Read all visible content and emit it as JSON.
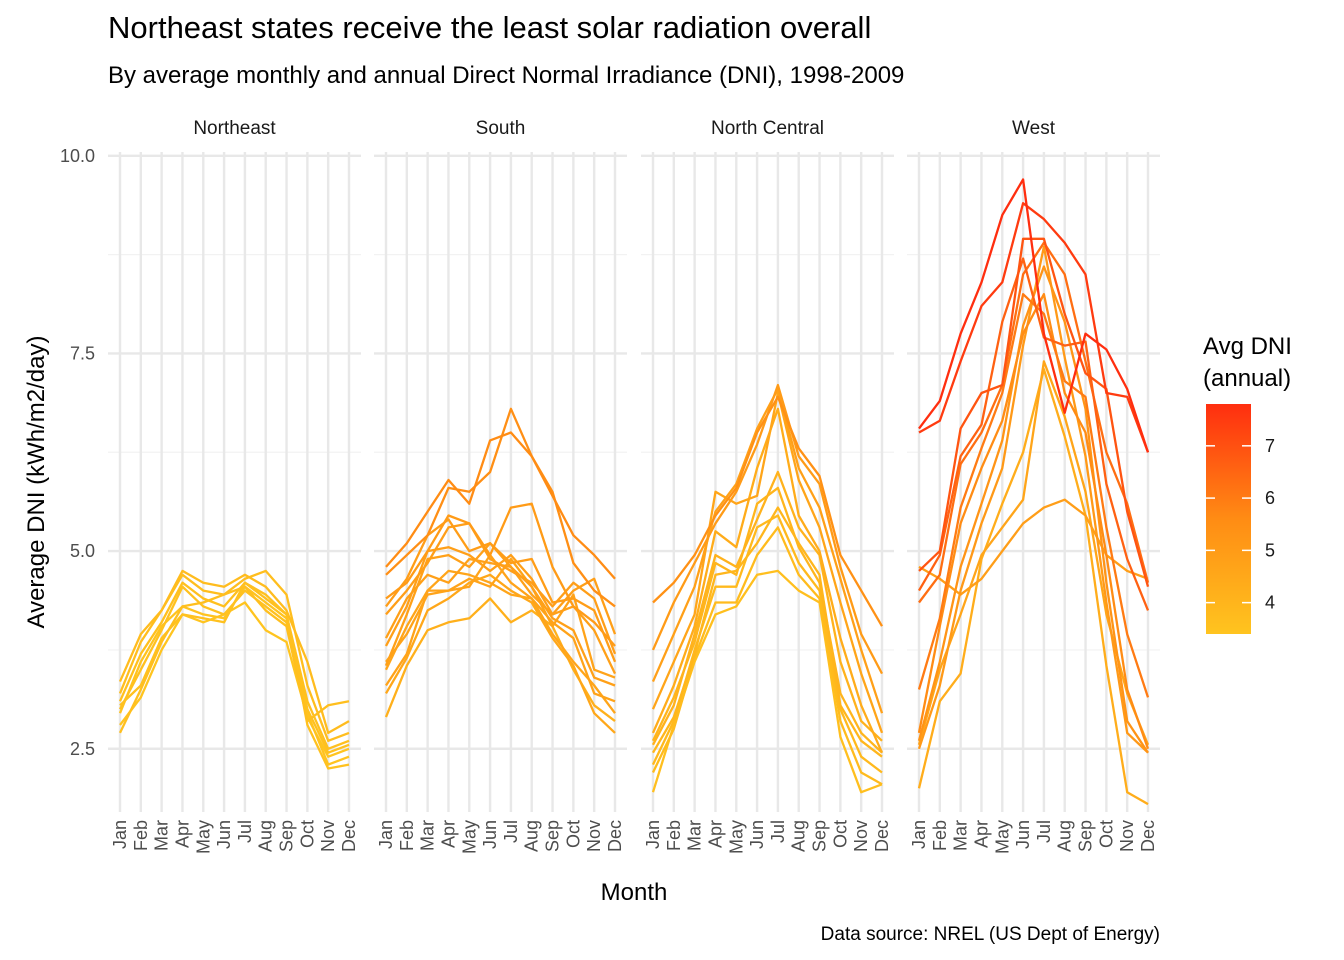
{
  "chart_data": {
    "type": "line",
    "title": "Northeast states receive the least solar radiation overall",
    "subtitle": "By average monthly and annual Direct Normal Irradiance (DNI), 1998-2009",
    "xlabel": "Month",
    "ylabel": "Average DNI (kWh/m2/day)",
    "caption": "Data source: NREL (US Dept of Energy)",
    "months": [
      "Jan",
      "Feb",
      "Mar",
      "Apr",
      "May",
      "Jun",
      "Jul",
      "Aug",
      "Sep",
      "Oct",
      "Nov",
      "Dec"
    ],
    "ylim": [
      1.7,
      10.2
    ],
    "yticks": [
      2.5,
      5.0,
      7.5,
      10.0
    ],
    "ytick_labels": [
      "2.5",
      "5.0",
      "7.5",
      "10.0"
    ],
    "grid": true,
    "legend": {
      "title_lines": [
        "Avg DNI",
        "(annual)"
      ],
      "position": "right",
      "range": [
        3.4,
        7.8
      ],
      "ticks": [
        4,
        5,
        6,
        7
      ],
      "tick_labels": [
        "4",
        "5",
        "6",
        "7"
      ],
      "color_low": "#ffc41f",
      "color_mid": "#ff8c14",
      "color_high": "#ff2e0f"
    },
    "panels": [
      {
        "name": "Northeast",
        "series": [
          {
            "annual": 3.7,
            "values": [
              3.35,
              3.95,
              4.25,
              4.75,
              4.6,
              4.55,
              4.7,
              4.55,
              4.25,
              3.6,
              2.7,
              2.85
            ]
          },
          {
            "annual": 3.65,
            "values": [
              3.2,
              3.85,
              4.25,
              4.7,
              4.5,
              4.45,
              4.65,
              4.75,
              4.45,
              3.3,
              2.6,
              2.7
            ]
          },
          {
            "annual": 3.55,
            "values": [
              3.1,
              3.7,
              4.1,
              4.6,
              4.4,
              4.3,
              4.6,
              4.4,
              4.2,
              3.1,
              2.5,
              2.6
            ]
          },
          {
            "annual": 3.5,
            "values": [
              3.0,
              3.5,
              4.0,
              4.55,
              4.3,
              4.2,
              4.5,
              4.3,
              4.1,
              3.0,
              2.45,
              2.55
            ]
          },
          {
            "annual": 3.45,
            "values": [
              2.95,
              3.6,
              4.05,
              4.3,
              4.2,
              4.15,
              4.55,
              4.35,
              4.15,
              2.95,
              2.3,
              2.4
            ]
          },
          {
            "annual": 3.5,
            "values": [
              3.05,
              3.3,
              3.9,
              4.2,
              4.15,
              4.1,
              4.6,
              4.45,
              4.2,
              2.8,
              2.25,
              2.3
            ]
          },
          {
            "annual": 3.6,
            "values": [
              2.7,
              3.25,
              3.85,
              4.3,
              4.35,
              4.45,
              4.55,
              4.25,
              4.05,
              2.85,
              3.05,
              3.1
            ]
          },
          {
            "annual": 3.4,
            "values": [
              2.8,
              3.15,
              3.75,
              4.2,
              4.1,
              4.2,
              4.35,
              4.0,
              3.85,
              2.9,
              2.4,
              2.5
            ]
          }
        ]
      },
      {
        "name": "South",
        "series": [
          {
            "annual": 5.6,
            "values": [
              4.8,
              5.1,
              5.5,
              5.9,
              5.6,
              6.4,
              6.5,
              6.2,
              5.7,
              5.2,
              4.95,
              4.65
            ]
          },
          {
            "annual": 5.5,
            "values": [
              4.7,
              4.95,
              5.2,
              5.8,
              5.75,
              6.0,
              6.8,
              6.2,
              5.75,
              4.85,
              4.5,
              4.3
            ]
          },
          {
            "annual": 5.0,
            "values": [
              4.4,
              4.6,
              5.0,
              5.45,
              5.35,
              4.95,
              5.55,
              5.6,
              4.8,
              4.3,
              4.1,
              3.8
            ]
          },
          {
            "annual": 4.95,
            "values": [
              4.3,
              4.65,
              5.2,
              5.4,
              5.0,
              5.1,
              4.85,
              4.9,
              4.35,
              4.4,
              4.25,
              3.6
            ]
          },
          {
            "annual": 4.9,
            "values": [
              4.2,
              4.5,
              4.85,
              5.3,
              5.35,
              4.9,
              4.75,
              4.6,
              4.3,
              4.6,
              4.4,
              3.7
            ]
          },
          {
            "annual": 4.85,
            "values": [
              3.8,
              4.3,
              5.0,
              5.05,
              4.95,
              4.75,
              4.95,
              4.65,
              4.2,
              4.5,
              4.65,
              3.95
            ]
          },
          {
            "annual": 4.8,
            "values": [
              3.55,
              4.2,
              4.9,
              4.95,
              4.8,
              5.1,
              4.8,
              4.55,
              4.15,
              4.0,
              3.4,
              3.3
            ]
          },
          {
            "annual": 4.8,
            "values": [
              3.9,
              4.4,
              4.7,
              4.6,
              4.9,
              4.85,
              4.8,
              4.45,
              4.2,
              4.3,
              4.0,
              3.45
            ]
          },
          {
            "annual": 4.7,
            "values": [
              3.6,
              3.95,
              4.45,
              4.5,
              4.55,
              4.95,
              4.6,
              4.4,
              4.1,
              3.9,
              3.2,
              3.1
            ]
          },
          {
            "annual": 4.7,
            "values": [
              3.3,
              3.7,
              4.5,
              4.5,
              4.65,
              4.55,
              4.9,
              4.55,
              4.05,
              4.45,
              3.5,
              3.4
            ]
          },
          {
            "annual": 4.6,
            "values": [
              3.5,
              4.05,
              4.5,
              4.75,
              4.7,
              4.6,
              4.45,
              4.4,
              3.95,
              3.6,
              3.3,
              2.95
            ]
          },
          {
            "annual": 4.55,
            "values": [
              3.2,
              3.65,
              4.25,
              4.4,
              4.6,
              4.7,
              4.5,
              4.35,
              3.9,
              3.55,
              2.95,
              2.7
            ]
          },
          {
            "annual": 4.2,
            "values": [
              2.9,
              3.55,
              4.0,
              4.1,
              4.15,
              4.4,
              4.1,
              4.25,
              4.05,
              3.5,
              3.05,
              2.85
            ]
          }
        ]
      },
      {
        "name": "North Central",
        "series": [
          {
            "annual": 5.4,
            "values": [
              4.35,
              4.6,
              4.95,
              5.45,
              5.8,
              6.5,
              6.95,
              6.3,
              5.95,
              4.95,
              4.5,
              4.05
            ]
          },
          {
            "annual": 5.0,
            "values": [
              3.75,
              4.35,
              4.85,
              5.35,
              5.75,
              6.35,
              7.1,
              6.2,
              5.85,
              4.8,
              3.95,
              3.45
            ]
          },
          {
            "annual": 4.8,
            "values": [
              3.35,
              3.95,
              4.55,
              5.5,
              5.85,
              6.55,
              7.05,
              6.05,
              5.55,
              4.65,
              3.75,
              2.95
            ]
          },
          {
            "annual": 4.6,
            "values": [
              3.0,
              3.6,
              4.2,
              5.75,
              5.6,
              5.7,
              7.0,
              5.9,
              5.3,
              4.35,
              3.45,
              2.7
            ]
          },
          {
            "annual": 4.35,
            "values": [
              2.7,
              3.3,
              4.05,
              5.25,
              5.05,
              6.05,
              6.8,
              5.45,
              5.0,
              3.9,
              3.05,
              2.45
            ]
          },
          {
            "annual": 4.1,
            "values": [
              2.55,
              3.05,
              3.95,
              4.95,
              4.8,
              5.4,
              6.0,
              5.3,
              4.95,
              3.6,
              2.85,
              2.6
            ]
          },
          {
            "annual": 4.0,
            "values": [
              2.6,
              3.15,
              3.85,
              4.85,
              4.7,
              5.6,
              5.8,
              5.05,
              4.6,
              3.2,
              2.7,
              2.45
            ]
          },
          {
            "annual": 3.95,
            "values": [
              2.45,
              2.9,
              3.7,
              4.7,
              4.75,
              5.1,
              5.55,
              5.1,
              4.7,
              3.05,
              2.6,
              2.4
            ]
          },
          {
            "annual": 3.85,
            "values": [
              2.3,
              2.85,
              3.75,
              4.55,
              4.55,
              5.3,
              5.45,
              4.85,
              4.5,
              3.0,
              2.4,
              2.2
            ]
          },
          {
            "annual": 3.75,
            "values": [
              2.2,
              2.75,
              3.65,
              4.35,
              4.35,
              4.95,
              5.3,
              4.7,
              4.4,
              2.85,
              2.2,
              2.05
            ]
          },
          {
            "annual": 3.6,
            "values": [
              1.95,
              2.8,
              3.6,
              4.2,
              4.3,
              4.7,
              4.75,
              4.5,
              4.35,
              2.65,
              1.95,
              2.05
            ]
          }
        ]
      },
      {
        "name": "West",
        "series": [
          {
            "annual": 7.8,
            "values": [
              6.55,
              6.9,
              7.75,
              8.4,
              9.25,
              9.7,
              7.75,
              6.75,
              7.75,
              7.55,
              7.05,
              6.25
            ]
          },
          {
            "annual": 7.5,
            "values": [
              6.5,
              6.65,
              7.4,
              8.1,
              8.4,
              9.4,
              9.2,
              8.9,
              8.5,
              7.0,
              6.95,
              6.25
            ]
          },
          {
            "annual": 6.9,
            "values": [
              4.75,
              5.0,
              6.55,
              7.0,
              7.1,
              8.95,
              8.95,
              8.0,
              7.25,
              7.05,
              5.5,
              4.55
            ]
          },
          {
            "annual": 6.6,
            "values": [
              4.5,
              4.95,
              6.2,
              6.6,
              7.9,
              8.7,
              7.7,
              7.6,
              7.65,
              5.85,
              4.9,
              4.25
            ]
          },
          {
            "annual": 6.3,
            "values": [
              4.35,
              4.7,
              6.1,
              6.5,
              7.1,
              8.5,
              8.9,
              8.5,
              7.4,
              6.25,
              5.6,
              4.6
            ]
          },
          {
            "annual": 6.0,
            "values": [
              3.25,
              4.15,
              5.55,
              6.3,
              7.0,
              8.25,
              8.0,
              7.15,
              6.95,
              5.3,
              3.95,
              3.15
            ]
          },
          {
            "annual": 5.6,
            "values": [
              2.7,
              4.05,
              5.35,
              6.05,
              6.65,
              7.75,
              8.25,
              7.0,
              6.5,
              4.95,
              3.25,
              2.5
            ]
          },
          {
            "annual": 5.3,
            "values": [
              2.6,
              3.6,
              4.8,
              5.6,
              6.4,
              7.85,
              8.6,
              7.9,
              6.8,
              4.6,
              2.85,
              2.45
            ]
          },
          {
            "annual": 5.1,
            "values": [
              2.5,
              3.3,
              4.5,
              5.35,
              6.05,
              7.6,
              8.85,
              7.45,
              6.2,
              4.35,
              2.7,
              2.45
            ]
          },
          {
            "annual": 4.9,
            "values": [
              4.8,
              4.65,
              4.45,
              4.65,
              5.0,
              5.35,
              5.55,
              5.65,
              5.45,
              4.95,
              4.75,
              4.65
            ]
          },
          {
            "annual": 4.3,
            "values": [
              2.0,
              3.1,
              3.45,
              4.9,
              5.6,
              6.25,
              7.3,
              6.45,
              5.45,
              3.55,
              1.95,
              1.8
            ]
          },
          {
            "annual": 4.6,
            "values": [
              2.55,
              3.5,
              4.2,
              4.95,
              5.3,
              5.65,
              7.4,
              6.7,
              5.75,
              4.2,
              3.2,
              2.55
            ]
          }
        ]
      }
    ]
  }
}
